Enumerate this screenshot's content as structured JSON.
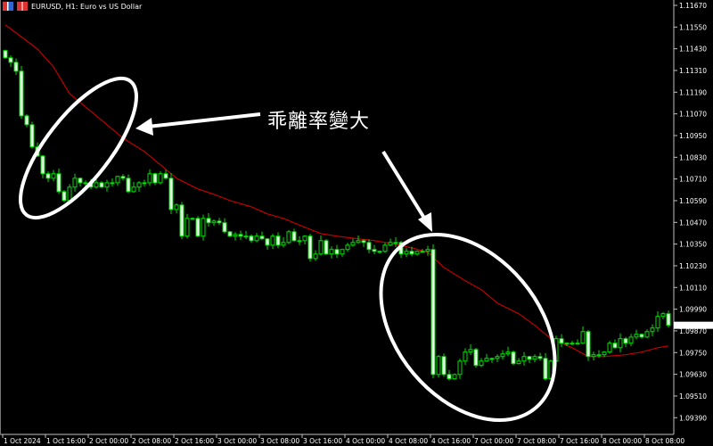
{
  "window": {
    "title": "EURUSD, H1:  Euro vs US Dollar",
    "icons": [
      "chart-grid-icon",
      "strategy-tester-icon"
    ]
  },
  "annotation": {
    "text": "乖離率變大"
  },
  "colors": {
    "background": "#000000",
    "candle_outline": "#00e000",
    "bear_fill": "#e8ffe8",
    "bull_fill": "#000000",
    "ma_line": "#c00000",
    "axis": "#c0c0c0",
    "annotation": "#ffffff"
  },
  "chart_data": {
    "type": "candlestick",
    "symbol": "EURUSD",
    "timeframe": "H1",
    "first_open": 1.1142,
    "closes": [
      1.1138,
      1.11355,
      1.11306,
      1.11059,
      1.1101,
      1.10887,
      1.10837,
      1.10739,
      1.10714,
      1.10739,
      1.1064,
      1.10591,
      1.10665,
      1.10714,
      1.10689,
      1.10689,
      1.10665,
      1.10689,
      1.10665,
      1.10689,
      1.10689,
      1.10724,
      1.10714,
      1.1064,
      1.10665,
      1.10689,
      1.10689,
      1.10739,
      1.10689,
      1.10739,
      1.10714,
      1.10541,
      1.10566,
      1.10394,
      1.10492,
      1.10492,
      1.10394,
      1.10492,
      1.10468,
      1.10477,
      1.10468,
      1.10418,
      1.10394,
      1.10403,
      1.10394,
      1.10394,
      1.10369,
      1.10394,
      1.10379,
      1.10344,
      1.10394,
      1.10344,
      1.10359,
      1.10418,
      1.10369,
      1.10369,
      1.10394,
      1.1027,
      1.10295,
      1.10369,
      1.10295,
      1.1032,
      1.10295,
      1.1032,
      1.10344,
      1.10359,
      1.10369,
      1.10359,
      1.1032,
      1.1031,
      1.1031,
      1.10344,
      1.10359,
      1.10359,
      1.10295,
      1.1031,
      1.10295,
      1.1031,
      1.1031,
      1.1032,
      1.09629,
      1.09728,
      1.09629,
      1.09605,
      1.09629,
      1.09703,
      1.09753,
      1.09767,
      1.09679,
      1.09703,
      1.09718,
      1.09718,
      1.09728,
      1.09743,
      1.09753,
      1.09689,
      1.09703,
      1.09728,
      1.09713,
      1.09728,
      1.09718,
      1.09605,
      1.09703,
      1.09827,
      1.09802,
      1.09802,
      1.09802,
      1.09802,
      1.09866,
      1.09728,
      1.09738,
      1.09738,
      1.09753,
      1.09802,
      1.09777,
      1.09827,
      1.09802,
      1.09836,
      1.09851,
      1.09836,
      1.09866,
      1.09886,
      1.0995,
      1.09965,
      1.09901
    ],
    "moving_average": [
      [
        0,
        1.11562
      ],
      [
        6,
        1.11429
      ],
      [
        9,
        1.1133
      ],
      [
        12,
        1.11182
      ],
      [
        16,
        1.11084
      ],
      [
        19,
        1.1101
      ],
      [
        22,
        1.10936
      ],
      [
        26,
        1.10862
      ],
      [
        29,
        1.10788
      ],
      [
        32,
        1.10714
      ],
      [
        36,
        1.10655
      ],
      [
        39,
        1.10625
      ],
      [
        42,
        1.10591
      ],
      [
        46,
        1.10556
      ],
      [
        49,
        1.10517
      ],
      [
        52,
        1.10492
      ],
      [
        56,
        1.10443
      ],
      [
        59,
        1.10408
      ],
      [
        62,
        1.10394
      ],
      [
        66,
        1.10379
      ],
      [
        69,
        1.10369
      ],
      [
        72,
        1.10354
      ],
      [
        76,
        1.10329
      ],
      [
        79,
        1.10305
      ],
      [
        82,
        1.10221
      ],
      [
        86,
        1.10147
      ],
      [
        89,
        1.10098
      ],
      [
        92,
        1.10024
      ],
      [
        96,
        1.09965
      ],
      [
        99,
        1.09901
      ],
      [
        102,
        1.09827
      ],
      [
        106,
        1.09777
      ],
      [
        109,
        1.09728
      ],
      [
        112,
        1.09728
      ],
      [
        116,
        1.09738
      ],
      [
        119,
        1.09753
      ],
      [
        122,
        1.09777
      ],
      [
        124,
        1.09787
      ]
    ],
    "y_ticks": [
      "1.11670",
      "1.11550",
      "1.11430",
      "1.11310",
      "1.11190",
      "1.11070",
      "1.10950",
      "1.10830",
      "1.10710",
      "1.10590",
      "1.10470",
      "1.10350",
      "1.10230",
      "1.10110",
      "1.09990",
      "1.09870",
      "1.09750",
      "1.09630",
      "1.09510",
      "1.09390"
    ],
    "x_ticks": [
      "1 Oct 2024",
      "1 Oct 16:00",
      "2 Oct 00:00",
      "2 Oct 08:00",
      "2 Oct 16:00",
      "3 Oct 00:00",
      "3 Oct 08:00",
      "3 Oct 16:00",
      "4 Oct 00:00",
      "4 Oct 08:00",
      "4 Oct 16:00",
      "7 Oct 00:00",
      "7 Oct 08:00",
      "7 Oct 16:00",
      "8 Oct 00:00",
      "8 Oct 08:00"
    ],
    "current_price": 1.09901,
    "grid": false
  }
}
